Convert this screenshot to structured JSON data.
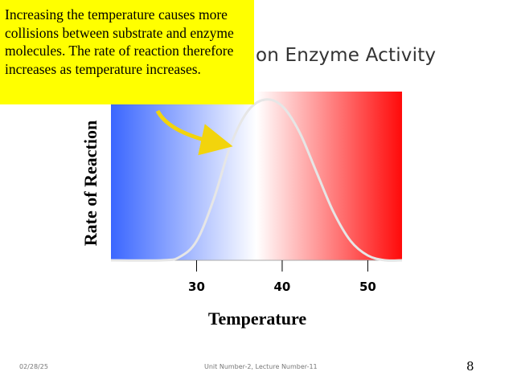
{
  "slide": {
    "title": "on Enzyme Activity",
    "callout": "Increasing the temperature causes more collisions between substrate and enzyme molecules. The rate of reaction therefore increases as temperature increases.",
    "footer_date": "02/28/25",
    "footer_center": "Unit Number-2, Lecture Number-11",
    "page_number": "8"
  },
  "chart_data": {
    "type": "line",
    "title": "",
    "xlabel": "Temperature",
    "ylabel": "Rate of Reaction",
    "x_ticks": [
      30,
      40,
      50
    ],
    "xlim": [
      20,
      54
    ],
    "ylim": [
      0,
      1.05
    ],
    "series": [
      {
        "x": [
          20,
          26,
          28,
          30,
          32,
          34,
          36,
          38,
          40,
          42,
          44,
          46,
          48,
          50,
          52,
          54
        ],
        "y": [
          0,
          0,
          0.02,
          0.12,
          0.38,
          0.72,
          0.93,
          1.0,
          0.96,
          0.8,
          0.55,
          0.3,
          0.12,
          0.03,
          0,
          0
        ]
      }
    ],
    "grid": false,
    "background_gradient": [
      "#3a66ff",
      "#ffffff",
      "#ff0a0a"
    ],
    "curve_color": "#e6e6e6",
    "arrow_color": "#f2d40c"
  }
}
